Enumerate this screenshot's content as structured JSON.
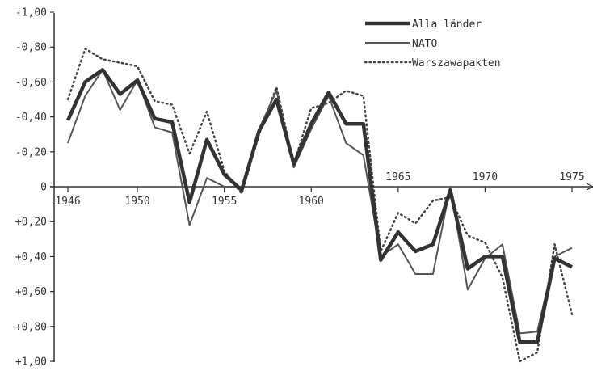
{
  "chart_data": {
    "type": "line",
    "title": "",
    "xlabel": "",
    "ylabel": "",
    "x": [
      1946,
      1947,
      1948,
      1949,
      1950,
      1951,
      1952,
      1953,
      1954,
      1955,
      1956,
      1957,
      1958,
      1959,
      1960,
      1961,
      1962,
      1963,
      1964,
      1965,
      1966,
      1967,
      1968,
      1969,
      1970,
      1971,
      1972,
      1973,
      1974,
      1975
    ],
    "xlim": [
      1945.6,
      1976.2
    ],
    "ylim": [
      -1.0,
      1.0
    ],
    "y_inverted": true,
    "grid": false,
    "legend_position": "top-right",
    "x_tick_values": [
      1946,
      1950,
      1955,
      1960,
      1965,
      1970,
      1975
    ],
    "x_tick_labels": [
      "1946",
      "1950",
      "1955",
      "1960",
      "1965",
      "1970",
      "1975"
    ],
    "y_tick_values": [
      -1.0,
      -0.8,
      -0.6,
      -0.4,
      -0.2,
      0,
      0.2,
      0.4,
      0.6,
      0.8,
      1.0
    ],
    "y_tick_labels": [
      "-1,00",
      "-0,80",
      "-0,60",
      "-0,40",
      "-0,20",
      "0",
      "+0,20",
      "+0,40",
      "+0,60",
      "+0,80",
      "+1,00"
    ],
    "series": [
      {
        "name": "Alla länder",
        "style": "thick",
        "color": "#333333",
        "values": [
          -0.38,
          -0.6,
          -0.67,
          -0.53,
          -0.61,
          -0.39,
          -0.37,
          0.09,
          -0.27,
          -0.07,
          0.02,
          -0.32,
          -0.5,
          -0.13,
          -0.36,
          -0.54,
          -0.36,
          -0.36,
          0.42,
          0.26,
          0.37,
          0.33,
          0.02,
          0.47,
          0.4,
          0.4,
          0.89,
          0.89,
          0.41,
          0.46
        ]
      },
      {
        "name": "NATO",
        "style": "thin",
        "color": "#555555",
        "values": [
          -0.25,
          -0.52,
          -0.67,
          -0.44,
          -0.61,
          -0.34,
          -0.31,
          0.22,
          -0.05,
          0.0,
          0.0,
          -0.33,
          -0.55,
          -0.11,
          -0.33,
          -0.52,
          -0.25,
          -0.18,
          0.4,
          0.33,
          0.5,
          0.5,
          0.0,
          0.59,
          0.41,
          0.33,
          0.84,
          0.83,
          0.4,
          0.35
        ]
      },
      {
        "name": "Warszawapakten",
        "style": "dotted",
        "color": "#444444",
        "values": [
          -0.5,
          -0.79,
          -0.73,
          -0.71,
          -0.69,
          -0.49,
          -0.47,
          -0.19,
          -0.43,
          -0.09,
          0.04,
          -0.3,
          -0.57,
          -0.13,
          -0.45,
          -0.48,
          -0.55,
          -0.52,
          0.37,
          0.15,
          0.21,
          0.08,
          0.06,
          0.28,
          0.32,
          0.52,
          1.0,
          0.95,
          0.33,
          0.73
        ]
      }
    ]
  }
}
